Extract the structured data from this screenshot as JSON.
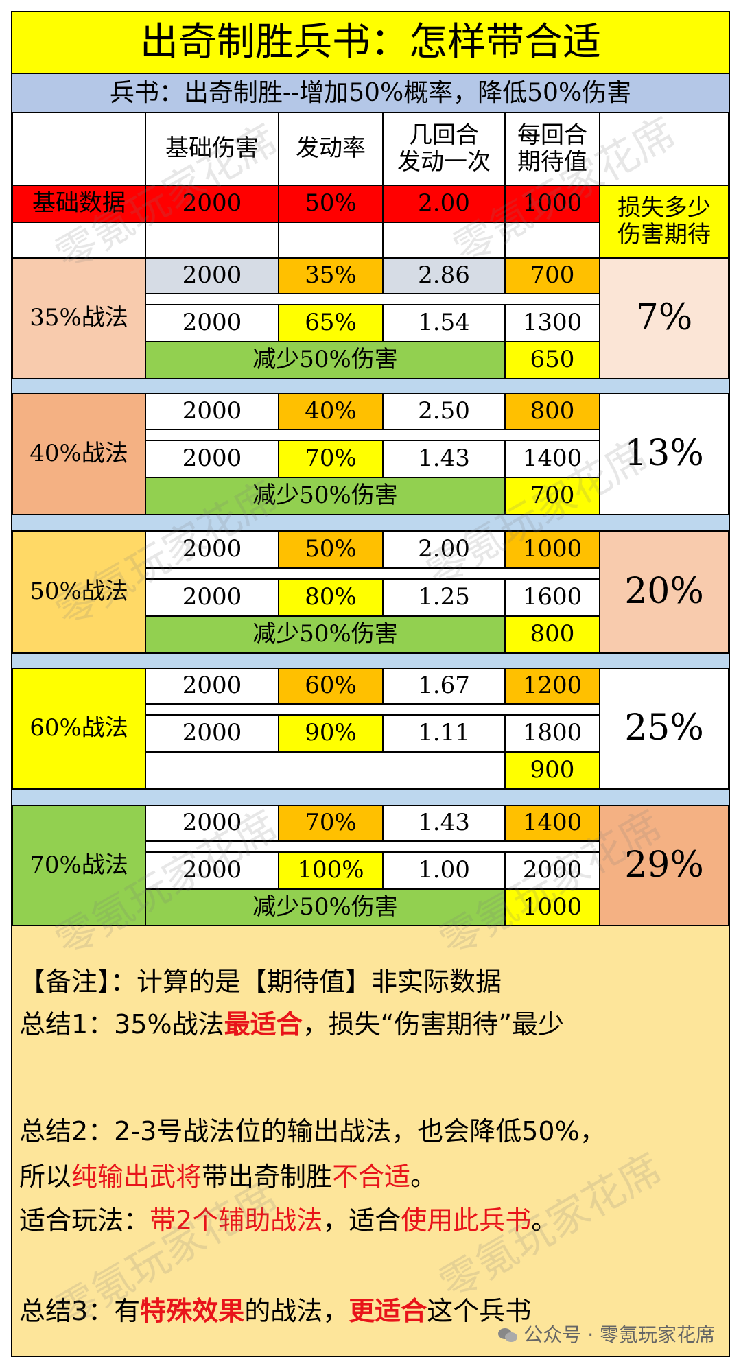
{
  "title": "出奇制胜兵书：怎样带合适",
  "subtitle": "兵书：出奇制胜--增加50%概率，降低50%伤害",
  "headers": {
    "base_damage": "基础伤害",
    "trigger_rate": "发动率",
    "rounds_line1": "几回合",
    "rounds_line2": "发动一次",
    "expect_line1": "每回合",
    "expect_line2": "期待值",
    "loss_line1": "损失多少",
    "loss_line2": "伤害期待"
  },
  "base_row": {
    "label": "基础数据",
    "damage": "2000",
    "rate": "50%",
    "rounds": "2.00",
    "expect": "1000"
  },
  "groups": [
    {
      "label": "35%战法",
      "loss": "7%",
      "r1": {
        "damage": "2000",
        "rate": "35%",
        "rounds": "2.86",
        "expect": "700"
      },
      "r2": {
        "damage": "2000",
        "rate": "65%",
        "rounds": "1.54",
        "expect": "1300"
      },
      "reduce_label": "减少50%伤害",
      "reduced": "650"
    },
    {
      "label": "40%战法",
      "loss": "13%",
      "r1": {
        "damage": "2000",
        "rate": "40%",
        "rounds": "2.50",
        "expect": "800"
      },
      "r2": {
        "damage": "2000",
        "rate": "70%",
        "rounds": "1.43",
        "expect": "1400"
      },
      "reduce_label": "减少50%伤害",
      "reduced": "700"
    },
    {
      "label": "50%战法",
      "loss": "20%",
      "r1": {
        "damage": "2000",
        "rate": "50%",
        "rounds": "2.00",
        "expect": "1000"
      },
      "r2": {
        "damage": "2000",
        "rate": "80%",
        "rounds": "1.25",
        "expect": "1600"
      },
      "reduce_label": "减少50%伤害",
      "reduced": "800"
    },
    {
      "label": "60%战法",
      "loss": "25%",
      "r1": {
        "damage": "2000",
        "rate": "60%",
        "rounds": "1.67",
        "expect": "1200"
      },
      "r2": {
        "damage": "2000",
        "rate": "90%",
        "rounds": "1.11",
        "expect": "1800"
      },
      "reduce_label": "",
      "reduced": "900"
    },
    {
      "label": "70%战法",
      "loss": "29%",
      "r1": {
        "damage": "2000",
        "rate": "70%",
        "rounds": "1.43",
        "expect": "1400"
      },
      "r2": {
        "damage": "2000",
        "rate": "100%",
        "rounds": "1.00",
        "expect": "2000"
      },
      "reduce_label": "减少50%伤害",
      "reduced": "1000"
    }
  ],
  "notes": {
    "l1": "【备注】：计算的是【期待值】非实际数据",
    "l2a": "总结1：35%战法",
    "l2b": "最适合",
    "l2c": "，损失“伤害期待”最少",
    "l3": "总结2：2-3号战法位的输出战法，也会降低50%，",
    "l4a": "所以",
    "l4b": "纯输出武将",
    "l4c": "带出奇制胜",
    "l4d": "不合适",
    "l4e": "。",
    "l5a": "适合玩法：",
    "l5b": "带2个辅助战法",
    "l5c": "，适合",
    "l5d": "使用此兵书",
    "l5e": "。",
    "l6a": "总结3：有",
    "l6b": "特殊效果",
    "l6c": "的战法，",
    "l6d": "更适合",
    "l6e": "这个兵书"
  },
  "watermark": "零氪玩家花席",
  "brand": "公众号 · 零氪玩家花席",
  "colors": {
    "yellow": "#ffff00",
    "orange": "#ffc000",
    "red": "#ff0000",
    "green": "#92d050",
    "lightblue": "#bdd7ee",
    "peach": "#f8cbad",
    "salmon": "#f4b183",
    "gold": "#ffd966",
    "grayblue": "#d6dce5",
    "notes": "#fde59a"
  }
}
